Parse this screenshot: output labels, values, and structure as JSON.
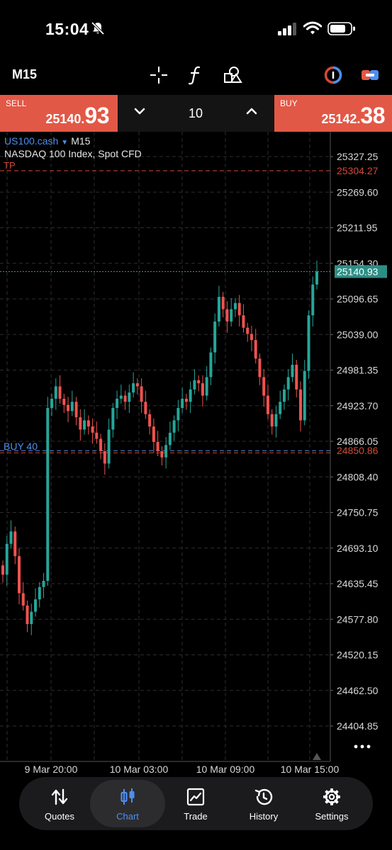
{
  "status_bar": {
    "time": "15:04"
  },
  "toolbar": {
    "timeframe": "M15"
  },
  "trade_panel": {
    "sell_label": "SELL",
    "sell_price_small": "25140.",
    "sell_price_big": "93",
    "buy_label": "BUY",
    "buy_price_small": "25142.",
    "buy_price_big": "38",
    "lot_size": "10"
  },
  "symbol": {
    "name": "US100.cash",
    "timeframe": "M15",
    "description": "NASDAQ 100 Index, Spot CFD"
  },
  "chart_data": {
    "type": "candlestick",
    "y_ticks": [
      "25327.25",
      "25269.60",
      "25211.95",
      "25154.30",
      "25096.65",
      "25039.00",
      "24981.35",
      "24923.70",
      "24866.05",
      "24808.40",
      "24750.75",
      "24693.10",
      "24635.45",
      "24577.80",
      "24520.15",
      "24462.50",
      "24404.85"
    ],
    "x_ticks": [
      "9 Mar 20:00",
      "10 Mar 03:00",
      "10 Mar 09:00",
      "10 Mar 15:00"
    ],
    "ylim": [
      24390,
      25345
    ],
    "grid": true,
    "current_price": "25140.93",
    "take_profit": {
      "label": "TP",
      "price": "25304.27"
    },
    "position": {
      "label": "BUY 40",
      "price": "24850.86"
    },
    "up_color": "#26a69a",
    "down_color": "#ef5350",
    "closes": [
      24650,
      24700,
      24720,
      24680,
      24620,
      24600,
      24570,
      24590,
      24610,
      24630,
      24640,
      24920,
      24935,
      24955,
      24935,
      24925,
      24915,
      24930,
      24905,
      24885,
      24900,
      24890,
      24880,
      24870,
      24850,
      24830,
      24885,
      24920,
      24935,
      24940,
      24930,
      24945,
      24960,
      24955,
      24930,
      24910,
      24890,
      24865,
      24850,
      24840,
      24860,
      24880,
      24900,
      24920,
      24935,
      24930,
      24950,
      24965,
      24960,
      24940,
      24970,
      25010,
      25060,
      25100,
      25080,
      25060,
      25080,
      25090,
      25070,
      25050,
      25040,
      25030,
      25000,
      24970,
      24940,
      24910,
      24890,
      24910,
      24930,
      24950,
      24970,
      24990,
      24950,
      24900,
      24980,
      25070,
      25120,
      25140.93
    ],
    "legend": "none"
  },
  "nav": {
    "items": [
      {
        "label": "Quotes",
        "icon": "arrows-updown-icon"
      },
      {
        "label": "Chart",
        "icon": "candlestick-icon"
      },
      {
        "label": "Trade",
        "icon": "trend-chart-icon"
      },
      {
        "label": "History",
        "icon": "history-clock-icon"
      },
      {
        "label": "Settings",
        "icon": "gear-icon"
      }
    ]
  },
  "colors": {
    "sell_buy_bg": "#e25846",
    "accent_blue": "#4e8ef0",
    "tp_red": "#d24a3b",
    "price_line": "#3a9fb0"
  }
}
